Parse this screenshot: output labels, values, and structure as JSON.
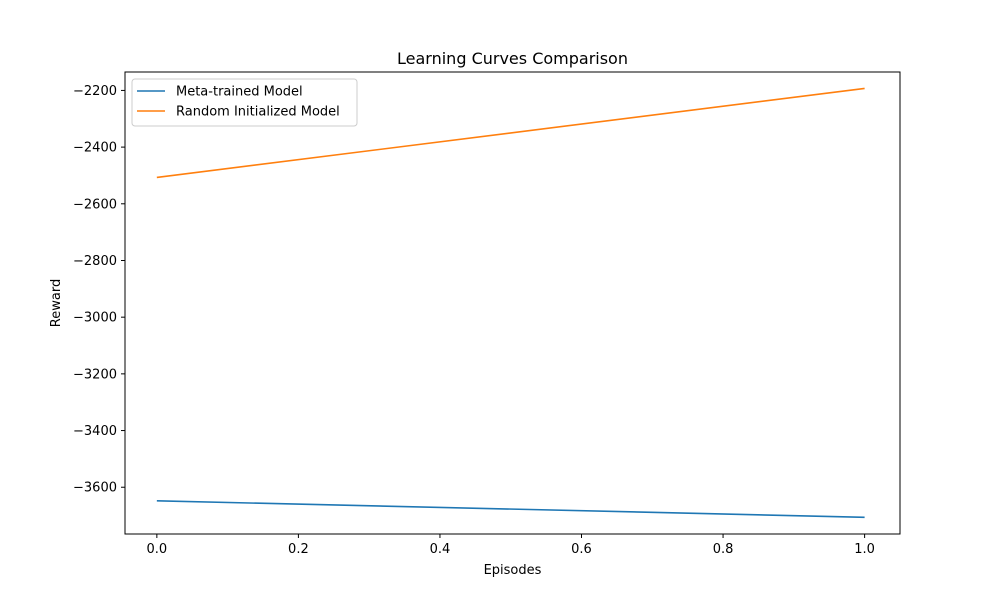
{
  "chart_data": {
    "type": "line",
    "title": "Learning Curves Comparison",
    "xlabel": "Episodes",
    "ylabel": "Reward",
    "x": [
      0,
      1
    ],
    "xlim": [
      -0.045,
      1.05
    ],
    "ylim": [
      -3765,
      -2135
    ],
    "xticks": [
      0.0,
      0.2,
      0.4,
      0.6,
      0.8,
      1.0
    ],
    "xtick_labels": [
      "0.0",
      "0.2",
      "0.4",
      "0.6",
      "0.8",
      "1.0"
    ],
    "yticks": [
      -3600,
      -3400,
      -3200,
      -3000,
      -2800,
      -2600,
      -2400,
      -2200
    ],
    "ytick_labels": [
      "−3600",
      "−3400",
      "−3200",
      "−3000",
      "−2800",
      "−2600",
      "−2400",
      "−2200"
    ],
    "series": [
      {
        "name": "Meta-trained Model",
        "values": [
          -3648,
          -3706
        ],
        "color": "#1f77b4"
      },
      {
        "name": "Random Initialized Model",
        "values": [
          -2507,
          -2193
        ],
        "color": "#ff7f0e"
      }
    ],
    "grid": false,
    "legend_position": "top-left"
  }
}
